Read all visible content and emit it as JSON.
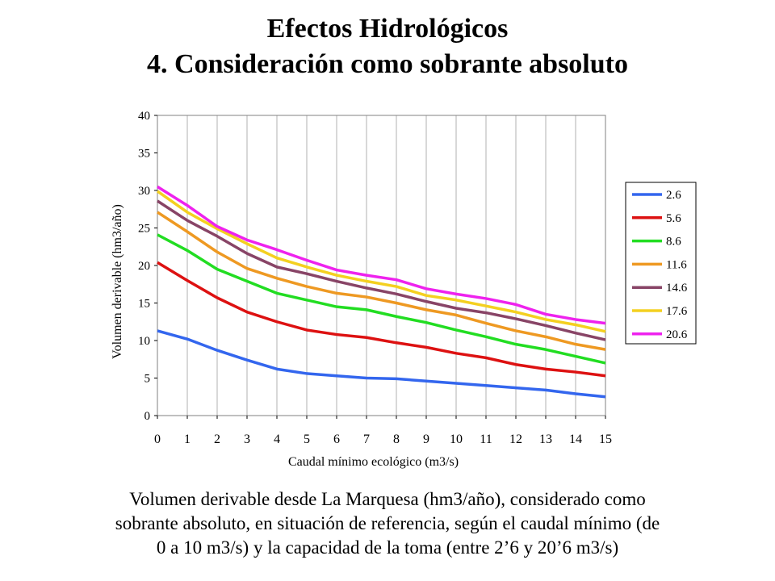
{
  "header": {
    "title_line1": "Efectos Hidrológicos",
    "title_line2": "4. Consideración como sobrante absoluto"
  },
  "caption": {
    "line1": "Volumen derivable desde La Marquesa (hm3/año), considerado como",
    "line2": "sobrante absoluto, en situación de referencia, según el caudal mínimo (de",
    "line3": "0 a 10 m3/s) y la capacidad de la toma (entre 2’6 y 20’6 m3/s)"
  },
  "chart_data": {
    "type": "line",
    "title": "",
    "xlabel": "Caudal mínimo ecológico (m3/s)",
    "ylabel": "Volumen derivable (hm3/año)",
    "xlim": [
      0,
      15
    ],
    "ylim": [
      0,
      40
    ],
    "x_ticks": [
      0,
      1,
      2,
      3,
      4,
      5,
      6,
      7,
      8,
      9,
      10,
      11,
      12,
      13,
      14,
      15
    ],
    "y_ticks": [
      0,
      5,
      10,
      15,
      20,
      25,
      30,
      35,
      40
    ],
    "grid": "vertical",
    "legend_position": "right",
    "x": [
      0,
      1,
      2,
      3,
      4,
      5,
      6,
      7,
      8,
      9,
      10,
      11,
      12,
      13,
      14,
      15
    ],
    "series": [
      {
        "name": "2.6",
        "color": "#3366ee",
        "values": [
          11.3,
          10.2,
          8.7,
          7.4,
          6.2,
          5.6,
          5.3,
          5.0,
          4.9,
          4.6,
          4.3,
          4.0,
          3.7,
          3.4,
          2.9,
          2.5
        ]
      },
      {
        "name": "5.6",
        "color": "#dd1111",
        "values": [
          20.4,
          18.0,
          15.7,
          13.8,
          12.5,
          11.4,
          10.8,
          10.4,
          9.7,
          9.1,
          8.3,
          7.7,
          6.8,
          6.2,
          5.8,
          5.3
        ]
      },
      {
        "name": "8.6",
        "color": "#22dd22",
        "values": [
          24.1,
          22.0,
          19.5,
          17.9,
          16.3,
          15.4,
          14.5,
          14.1,
          13.2,
          12.4,
          11.4,
          10.5,
          9.5,
          8.8,
          7.9,
          7.0
        ]
      },
      {
        "name": "11.6",
        "color": "#ee9922",
        "values": [
          27.1,
          24.5,
          21.8,
          19.6,
          18.3,
          17.2,
          16.3,
          15.8,
          15.0,
          14.1,
          13.4,
          12.3,
          11.3,
          10.5,
          9.5,
          8.8
        ]
      },
      {
        "name": "14.6",
        "color": "#884466",
        "values": [
          28.6,
          26.0,
          23.9,
          21.6,
          19.8,
          18.9,
          17.9,
          17.0,
          16.2,
          15.2,
          14.3,
          13.7,
          12.9,
          12.0,
          11.0,
          10.1
        ]
      },
      {
        "name": "17.6",
        "color": "#f4d020",
        "values": [
          29.9,
          27.1,
          24.9,
          22.9,
          21.0,
          19.8,
          18.7,
          17.9,
          17.2,
          16.0,
          15.4,
          14.6,
          13.8,
          12.8,
          12.1,
          11.2
        ]
      },
      {
        "name": "20.6",
        "color": "#ee22ee",
        "values": [
          30.5,
          28.0,
          25.2,
          23.4,
          22.1,
          20.7,
          19.4,
          18.7,
          18.1,
          16.9,
          16.2,
          15.6,
          14.8,
          13.5,
          12.8,
          12.3
        ]
      }
    ]
  }
}
